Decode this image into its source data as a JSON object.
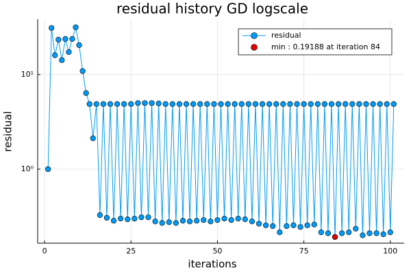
{
  "chart_data": {
    "type": "line",
    "title": "residual history GD logscale",
    "xlabel": "iterations",
    "ylabel": "residual",
    "x": [
      1,
      2,
      3,
      4,
      5,
      6,
      7,
      8,
      9,
      10,
      11,
      12,
      13,
      14,
      15,
      16,
      17,
      18,
      19,
      20,
      21,
      22,
      23,
      24,
      25,
      26,
      27,
      28,
      29,
      30,
      31,
      32,
      33,
      34,
      35,
      36,
      37,
      38,
      39,
      40,
      41,
      42,
      43,
      44,
      45,
      46,
      47,
      48,
      49,
      50,
      51,
      52,
      53,
      54,
      55,
      56,
      57,
      58,
      59,
      60,
      61,
      62,
      63,
      64,
      65,
      66,
      67,
      68,
      69,
      70,
      71,
      72,
      73,
      74,
      75,
      76,
      77,
      78,
      79,
      80,
      81,
      82,
      83,
      84,
      85,
      86,
      87,
      88,
      89,
      90,
      91,
      92,
      93,
      94,
      95,
      96,
      97,
      98,
      99,
      100,
      101
    ],
    "series": [
      {
        "name": "residual",
        "color": "#009af9",
        "values": [
          1.0,
          31.1,
          16.0,
          23.4,
          14.2,
          23.8,
          17.3,
          23.8,
          31.6,
          20.5,
          10.9,
          6.37,
          4.88,
          2.12,
          4.88,
          0.327,
          4.88,
          0.306,
          4.88,
          0.285,
          4.88,
          0.3,
          4.88,
          0.295,
          4.88,
          0.3,
          5.0,
          0.31,
          5.0,
          0.31,
          5.0,
          0.28,
          4.95,
          0.27,
          4.88,
          0.275,
          4.88,
          0.27,
          4.88,
          0.285,
          4.88,
          0.28,
          4.88,
          0.285,
          4.88,
          0.29,
          4.88,
          0.28,
          4.88,
          0.29,
          4.88,
          0.3,
          4.88,
          0.29,
          4.88,
          0.3,
          4.88,
          0.295,
          4.88,
          0.28,
          4.88,
          0.265,
          4.88,
          0.255,
          4.88,
          0.25,
          4.88,
          0.215,
          4.88,
          0.25,
          4.88,
          0.255,
          4.88,
          0.245,
          4.88,
          0.255,
          4.88,
          0.26,
          4.88,
          0.215,
          4.88,
          0.21,
          4.88,
          0.19188,
          4.88,
          0.21,
          4.88,
          0.215,
          4.88,
          0.235,
          4.88,
          0.2,
          4.88,
          0.21,
          4.88,
          0.21,
          4.88,
          0.205,
          4.88,
          0.215,
          4.88
        ]
      },
      {
        "name": "min : 0.19188 at iteration 84",
        "color": "#e30000",
        "x": [
          84
        ],
        "values": [
          0.19188
        ],
        "marker_only": true
      }
    ],
    "xlim": [
      -2,
      104
    ],
    "xticks": [
      0,
      25,
      50,
      75,
      100
    ],
    "ylim": [
      0.165,
      38.5
    ],
    "yscale": "log",
    "yticks": [
      {
        "value": 1,
        "label": "10⁰"
      },
      {
        "value": 10,
        "label": "10¹"
      }
    ],
    "grid": true,
    "legend": "top-right"
  }
}
